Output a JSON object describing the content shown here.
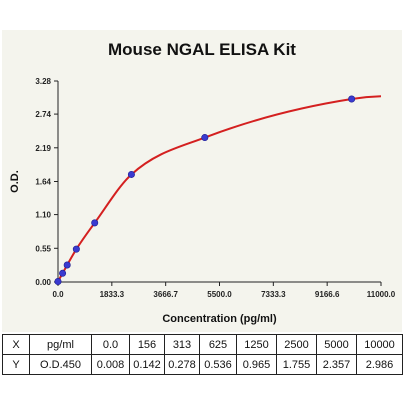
{
  "chart_data": {
    "type": "scatter",
    "title": "Mouse NGAL ELISA Kit",
    "xlabel": "Concentration (pg/ml)",
    "ylabel": "O.D.",
    "xlim": [
      0,
      11000
    ],
    "ylim": [
      0,
      3.28
    ],
    "x_ticks": [
      "0.0",
      "1833.3",
      "3666.7",
      "5500.0",
      "7333.3",
      "9166.6",
      "11000.0"
    ],
    "x_tick_values": [
      0,
      1833.3,
      3666.7,
      5500,
      7333.3,
      9166.6,
      11000
    ],
    "y_ticks": [
      "0.00",
      "0.55",
      "1.10",
      "1.64",
      "2.19",
      "2.74",
      "3.28"
    ],
    "y_tick_values": [
      0,
      0.55,
      1.1,
      1.64,
      2.19,
      2.74,
      3.28
    ],
    "grid": false,
    "series": [
      {
        "x": [
          0,
          156,
          313,
          625,
          1250,
          2500,
          5000,
          10000
        ],
        "y": [
          0.008,
          0.142,
          0.278,
          0.536,
          0.965,
          1.755,
          2.357,
          2.986
        ],
        "marker_color": "#3a3ad0",
        "fit_color": "#d42020"
      }
    ],
    "table": {
      "rows": [
        [
          "X",
          "pg/ml",
          "0.0",
          "156",
          "313",
          "625",
          "1250",
          "2500",
          "5000",
          "10000"
        ],
        [
          "Y",
          "O.D.450",
          "0.008",
          "0.142",
          "0.278",
          "0.536",
          "0.965",
          "1.755",
          "2.357",
          "2.986"
        ]
      ]
    }
  }
}
